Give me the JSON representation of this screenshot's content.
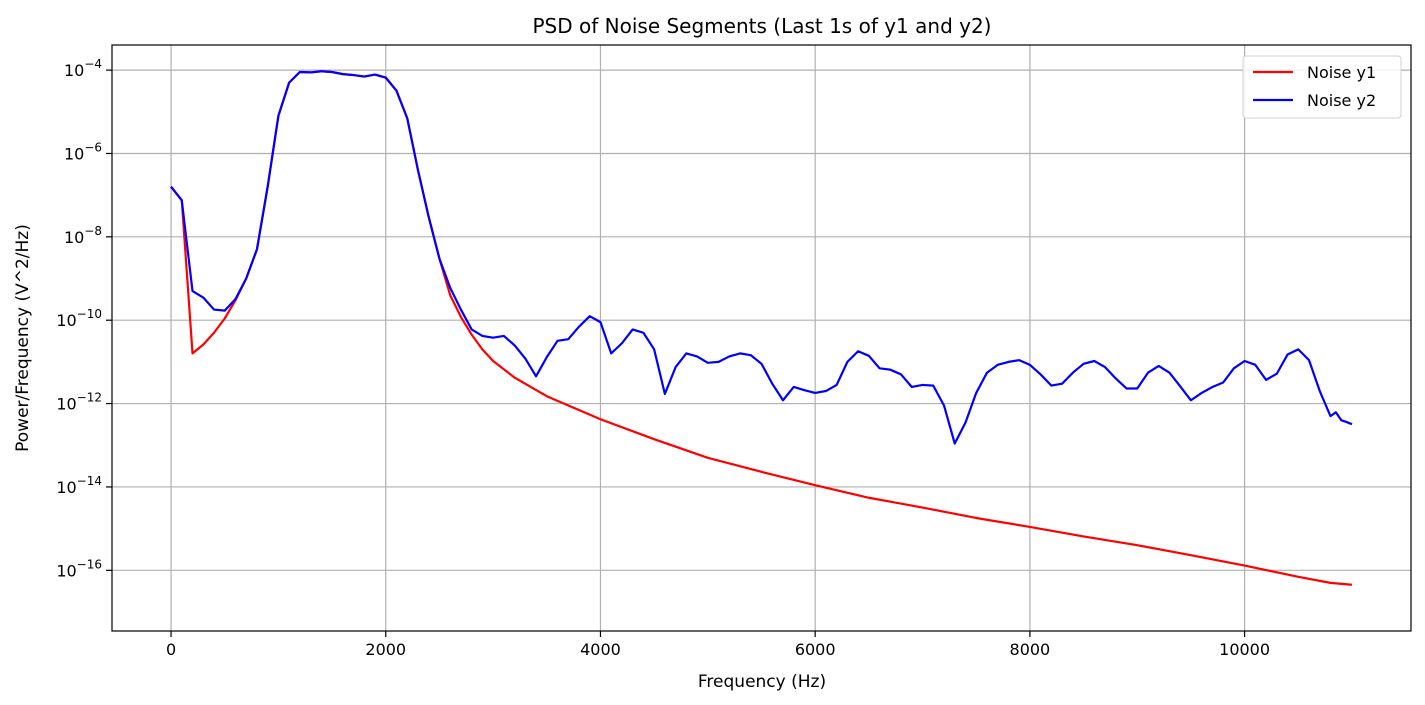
{
  "chart_data": {
    "type": "line",
    "title": "PSD of Noise Segments (Last 1s of y1 and y2)",
    "xlabel": "Frequency (Hz)",
    "ylabel": "Power/Frequency (V^2/Hz)",
    "xlim": [
      -550,
      11550
    ],
    "ylim": [
      3.5e-18,
      0.0004
    ],
    "yscale": "log",
    "grid": true,
    "legend_position": "top-right",
    "x_ticks": [
      {
        "value": 0,
        "label": "0"
      },
      {
        "value": 2000,
        "label": "2000"
      },
      {
        "value": 4000,
        "label": "4000"
      },
      {
        "value": 6000,
        "label": "6000"
      },
      {
        "value": 8000,
        "label": "8000"
      },
      {
        "value": 10000,
        "label": "10000"
      }
    ],
    "y_ticks": [
      {
        "value": -4,
        "base": "10",
        "exp": "−4"
      },
      {
        "value": -6,
        "base": "10",
        "exp": "−6"
      },
      {
        "value": -8,
        "base": "10",
        "exp": "−8"
      },
      {
        "value": -10,
        "base": "10",
        "exp": "−10"
      },
      {
        "value": -12,
        "base": "10",
        "exp": "−12"
      },
      {
        "value": -14,
        "base": "10",
        "exp": "−14"
      },
      {
        "value": -16,
        "base": "10",
        "exp": "−16"
      }
    ],
    "series": [
      {
        "name": "Noise y1",
        "color": "#ff0000",
        "points": [
          [
            0,
            1.6e-07
          ],
          [
            100,
            7.5e-08
          ],
          [
            200,
            1.6e-11
          ],
          [
            300,
            2.6e-11
          ],
          [
            400,
            5e-11
          ],
          [
            500,
            1.1e-10
          ],
          [
            600,
            3e-10
          ],
          [
            700,
            1e-09
          ],
          [
            800,
            5e-09
          ],
          [
            900,
            1.6e-07
          ],
          [
            1000,
            8e-06
          ],
          [
            1100,
            5e-05
          ],
          [
            1200,
            9e-05
          ],
          [
            1300,
            8.8e-05
          ],
          [
            1400,
            9.4e-05
          ],
          [
            1500,
            9e-05
          ],
          [
            1600,
            8e-05
          ],
          [
            1700,
            7.6e-05
          ],
          [
            1800,
            7e-05
          ],
          [
            1900,
            7.8e-05
          ],
          [
            2000,
            6.6e-05
          ],
          [
            2100,
            3.2e-05
          ],
          [
            2200,
            7e-06
          ],
          [
            2300,
            4e-07
          ],
          [
            2400,
            3e-08
          ],
          [
            2500,
            3e-09
          ],
          [
            2600,
            4e-10
          ],
          [
            2700,
            1.2e-10
          ],
          [
            2800,
            4.5e-11
          ],
          [
            2900,
            2e-11
          ],
          [
            3000,
            1.05e-11
          ],
          [
            3200,
            4.2e-12
          ],
          [
            3500,
            1.5e-12
          ],
          [
            4000,
            4.2e-13
          ],
          [
            4500,
            1.4e-13
          ],
          [
            5000,
            5e-14
          ],
          [
            5500,
            2.3e-14
          ],
          [
            6000,
            1.1e-14
          ],
          [
            6500,
            5.5e-15
          ],
          [
            7000,
            3.2e-15
          ],
          [
            7500,
            1.8e-15
          ],
          [
            8000,
            1.1e-15
          ],
          [
            8500,
            6.5e-16
          ],
          [
            9000,
            4e-16
          ],
          [
            9500,
            2.3e-16
          ],
          [
            10000,
            1.3e-16
          ],
          [
            10500,
            7e-17
          ],
          [
            10800,
            5e-17
          ],
          [
            11000,
            4.5e-17
          ]
        ]
      },
      {
        "name": "Noise y2",
        "color": "#0000ff",
        "points": [
          [
            0,
            1.6e-07
          ],
          [
            100,
            7.5e-08
          ],
          [
            200,
            5e-10
          ],
          [
            300,
            3.5e-10
          ],
          [
            400,
            1.8e-10
          ],
          [
            500,
            1.7e-10
          ],
          [
            600,
            3.2e-10
          ],
          [
            700,
            1e-09
          ],
          [
            800,
            5e-09
          ],
          [
            900,
            1.6e-07
          ],
          [
            1000,
            8e-06
          ],
          [
            1100,
            5e-05
          ],
          [
            1200,
            9e-05
          ],
          [
            1300,
            8.8e-05
          ],
          [
            1400,
            9.4e-05
          ],
          [
            1500,
            9e-05
          ],
          [
            1600,
            8e-05
          ],
          [
            1700,
            7.6e-05
          ],
          [
            1800,
            7e-05
          ],
          [
            1900,
            7.8e-05
          ],
          [
            2000,
            6.6e-05
          ],
          [
            2100,
            3.2e-05
          ],
          [
            2200,
            7e-06
          ],
          [
            2300,
            4e-07
          ],
          [
            2400,
            3e-08
          ],
          [
            2500,
            3e-09
          ],
          [
            2600,
            6e-10
          ],
          [
            2700,
            1.8e-10
          ],
          [
            2800,
            6e-11
          ],
          [
            2900,
            4.2e-11
          ],
          [
            3000,
            3.8e-11
          ],
          [
            3100,
            4.2e-11
          ],
          [
            3200,
            2.5e-11
          ],
          [
            3300,
            1.2e-11
          ],
          [
            3400,
            4.5e-12
          ],
          [
            3500,
            1.3e-11
          ],
          [
            3600,
            3.2e-11
          ],
          [
            3700,
            3.5e-11
          ],
          [
            3800,
            7e-11
          ],
          [
            3900,
            1.25e-10
          ],
          [
            4000,
            9e-11
          ],
          [
            4100,
            1.6e-11
          ],
          [
            4200,
            2.8e-11
          ],
          [
            4300,
            6e-11
          ],
          [
            4400,
            5e-11
          ],
          [
            4500,
            2e-11
          ],
          [
            4600,
            1.7e-12
          ],
          [
            4700,
            7.5e-12
          ],
          [
            4800,
            1.6e-11
          ],
          [
            4900,
            1.35e-11
          ],
          [
            5000,
            9.5e-12
          ],
          [
            5100,
            1e-11
          ],
          [
            5200,
            1.35e-11
          ],
          [
            5300,
            1.6e-11
          ],
          [
            5400,
            1.45e-11
          ],
          [
            5500,
            9e-12
          ],
          [
            5600,
            3e-12
          ],
          [
            5700,
            1.2e-12
          ],
          [
            5800,
            2.5e-12
          ],
          [
            5900,
            2.1e-12
          ],
          [
            6000,
            1.8e-12
          ],
          [
            6100,
            2e-12
          ],
          [
            6200,
            2.8e-12
          ],
          [
            6300,
            1e-11
          ],
          [
            6400,
            1.8e-11
          ],
          [
            6500,
            1.4e-11
          ],
          [
            6600,
            7e-12
          ],
          [
            6700,
            6.5e-12
          ],
          [
            6800,
            5e-12
          ],
          [
            6900,
            2.5e-12
          ],
          [
            7000,
            2.8e-12
          ],
          [
            7100,
            2.7e-12
          ],
          [
            7200,
            9e-13
          ],
          [
            7300,
            1.1e-13
          ],
          [
            7400,
            3.5e-13
          ],
          [
            7500,
            1.8e-12
          ],
          [
            7600,
            5.5e-12
          ],
          [
            7700,
            8.5e-12
          ],
          [
            7800,
            1e-11
          ],
          [
            7900,
            1.1e-11
          ],
          [
            8000,
            8.5e-12
          ],
          [
            8100,
            5e-12
          ],
          [
            8200,
            2.7e-12
          ],
          [
            8300,
            3e-12
          ],
          [
            8400,
            5.5e-12
          ],
          [
            8500,
            9e-12
          ],
          [
            8600,
            1.05e-11
          ],
          [
            8700,
            7.5e-12
          ],
          [
            8800,
            4e-12
          ],
          [
            8900,
            2.3e-12
          ],
          [
            9000,
            2.3e-12
          ],
          [
            9100,
            5.5e-12
          ],
          [
            9200,
            8e-12
          ],
          [
            9300,
            5.5e-12
          ],
          [
            9400,
            2.6e-12
          ],
          [
            9500,
            1.2e-12
          ],
          [
            9600,
            1.8e-12
          ],
          [
            9700,
            2.5e-12
          ],
          [
            9800,
            3.2e-12
          ],
          [
            9900,
            7e-12
          ],
          [
            10000,
            1.05e-11
          ],
          [
            10100,
            8.5e-12
          ],
          [
            10200,
            3.7e-12
          ],
          [
            10300,
            5.2e-12
          ],
          [
            10400,
            1.5e-11
          ],
          [
            10500,
            2e-11
          ],
          [
            10600,
            1.1e-11
          ],
          [
            10700,
            2e-12
          ],
          [
            10800,
            5e-13
          ],
          [
            10850,
            6.2e-13
          ],
          [
            10900,
            4e-13
          ],
          [
            10950,
            3.6e-13
          ],
          [
            11000,
            3.2e-13
          ]
        ]
      }
    ]
  }
}
